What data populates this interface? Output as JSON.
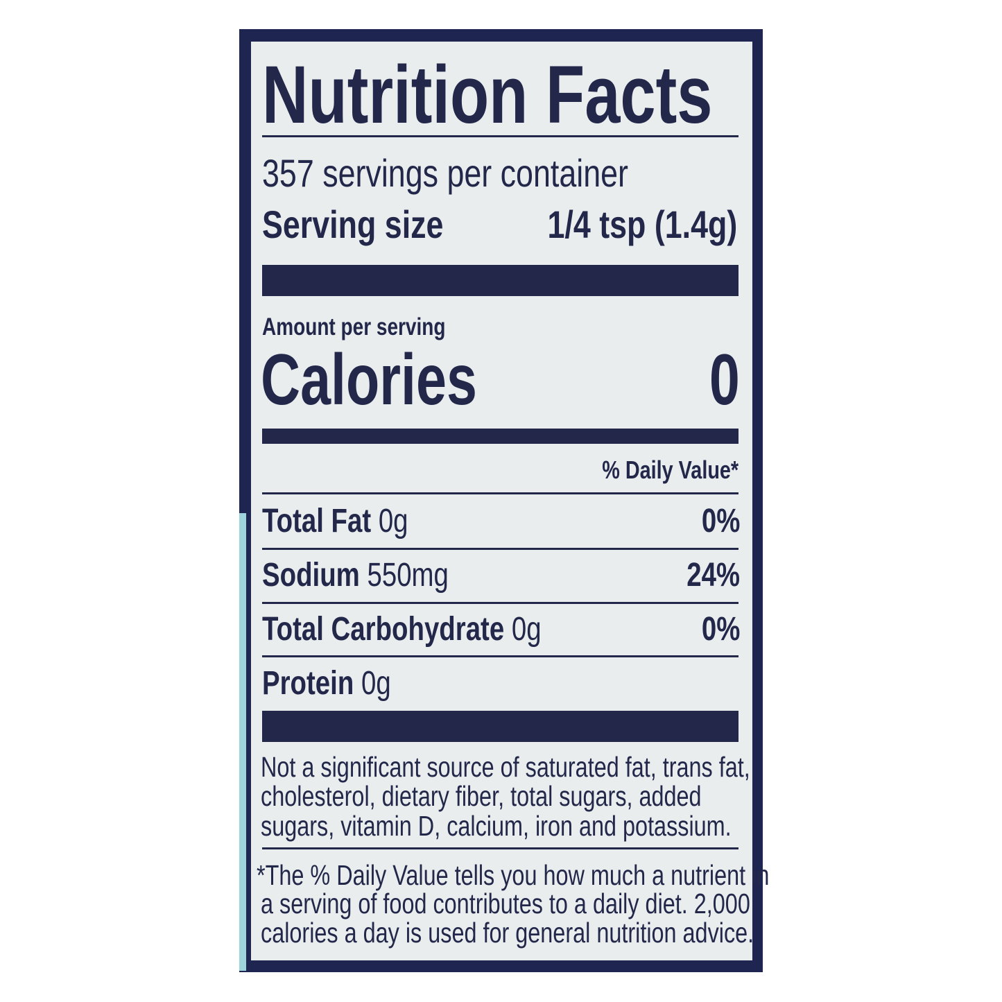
{
  "title": "Nutrition Facts",
  "servings_per_container": "357 servings per container",
  "serving_size_label": "Serving size",
  "serving_size_value": "1/4 tsp (1.4g)",
  "amount_per_serving": "Amount per serving",
  "calories_label": "Calories",
  "calories_value": "0",
  "daily_value_header": "% Daily Value*",
  "nutrients": [
    {
      "name": "Total Fat",
      "amount": "0g",
      "dv": "0%"
    },
    {
      "name": "Sodium",
      "amount": "550mg",
      "dv": "24%"
    },
    {
      "name": "Total Carbohydrate",
      "amount": "0g",
      "dv": "0%"
    },
    {
      "name": "Protein",
      "amount": "0g",
      "dv": ""
    }
  ],
  "not_significant": [
    "Not a significant source of saturated fat, trans fat,",
    "cholesterol, dietary fiber, total sugars, added",
    "sugars, vitamin D, calcium, iron and potassium."
  ],
  "footnote": [
    "*The % Daily Value tells you how much a nutrient in",
    "a serving of food contributes to a daily diet. 2,000",
    "calories a day is used for general nutrition advice."
  ],
  "colors": {
    "ink": "#23284a",
    "panel": "#1e2550",
    "background": "#e9edee"
  }
}
